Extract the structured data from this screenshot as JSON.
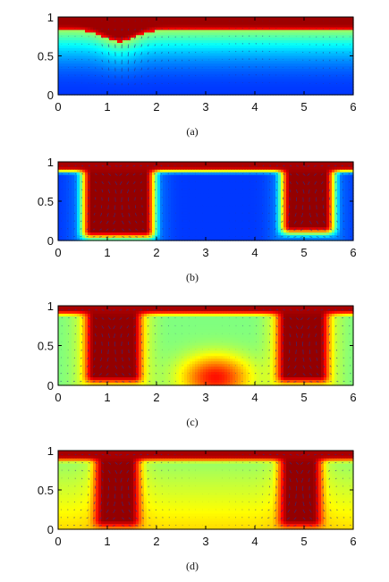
{
  "chart_data": [
    {
      "type": "heatmap",
      "caption": "(a)",
      "x_ticks": [
        "0",
        "1",
        "2",
        "3",
        "4",
        "5",
        "6"
      ],
      "y_ticks": [
        "0",
        "0.5",
        "1"
      ],
      "xlim": [
        0,
        6
      ],
      "ylim": [
        0,
        1
      ],
      "colormap": "jet",
      "overlay": "velocity vectors",
      "field": {
        "kind": "layer",
        "base_mid": 0.3,
        "base_amp": 0.0,
        "low_level": 0.35,
        "top_hot": 0.17,
        "dips": [
          {
            "x": 1.25,
            "w": 0.45,
            "depth": 0.15
          }
        ]
      }
    },
    {
      "type": "heatmap",
      "caption": "(b)",
      "x_ticks": [
        "0",
        "1",
        "2",
        "3",
        "4",
        "5",
        "6"
      ],
      "y_ticks": [
        "0",
        "0.5",
        "1"
      ],
      "xlim": [
        0,
        6
      ],
      "ylim": [
        0,
        1
      ],
      "colormap": "jet",
      "overlay": "velocity vectors",
      "field": {
        "kind": "columns",
        "bg": 0.18,
        "plumes": [
          {
            "x0": 0.5,
            "x1": 1.95,
            "top": 1.0,
            "bottom": 0.0
          },
          {
            "x0": 4.55,
            "x1": 5.6,
            "top": 1.0,
            "bottom": 0.06
          }
        ],
        "top_hot": 0.12,
        "glow": 0.12
      }
    },
    {
      "type": "heatmap",
      "caption": "(c)",
      "x_ticks": [
        "0",
        "1",
        "2",
        "3",
        "4",
        "5",
        "6"
      ],
      "y_ticks": [
        "0",
        "0.5",
        "1"
      ],
      "xlim": [
        0,
        6
      ],
      "ylim": [
        0,
        1
      ],
      "colormap": "jet",
      "overlay": "velocity vectors",
      "field": {
        "kind": "columns",
        "bg": 0.5,
        "plumes": [
          {
            "x0": 0.55,
            "x1": 1.7,
            "top": 1.0,
            "bottom": 0.0
          },
          {
            "x0": 4.45,
            "x1": 5.5,
            "top": 1.0,
            "bottom": 0.0
          }
        ],
        "top_hot": 0.1,
        "glow": 0.35,
        "hotspot": {
          "x": 3.2,
          "y": 0.1,
          "rx": 0.9,
          "ry": 0.35,
          "v": 0.86
        }
      }
    },
    {
      "type": "heatmap",
      "caption": "(d)",
      "x_ticks": [
        "0",
        "1",
        "2",
        "3",
        "4",
        "5",
        "6"
      ],
      "y_ticks": [
        "0",
        "0.5",
        "1"
      ],
      "xlim": [
        0,
        6
      ],
      "ylim": [
        0,
        1
      ],
      "colormap": "jet",
      "overlay": "velocity vectors",
      "field": {
        "kind": "columns",
        "bg": 0.5,
        "plumes": [
          {
            "x0": 0.75,
            "x1": 1.65,
            "top": 1.0,
            "bottom": 0.0
          },
          {
            "x0": 4.5,
            "x1": 5.35,
            "top": 1.0,
            "bottom": 0.0
          }
        ],
        "top_hot": 0.12,
        "glow": 0.18,
        "bottom_warm": 0.66
      }
    }
  ]
}
